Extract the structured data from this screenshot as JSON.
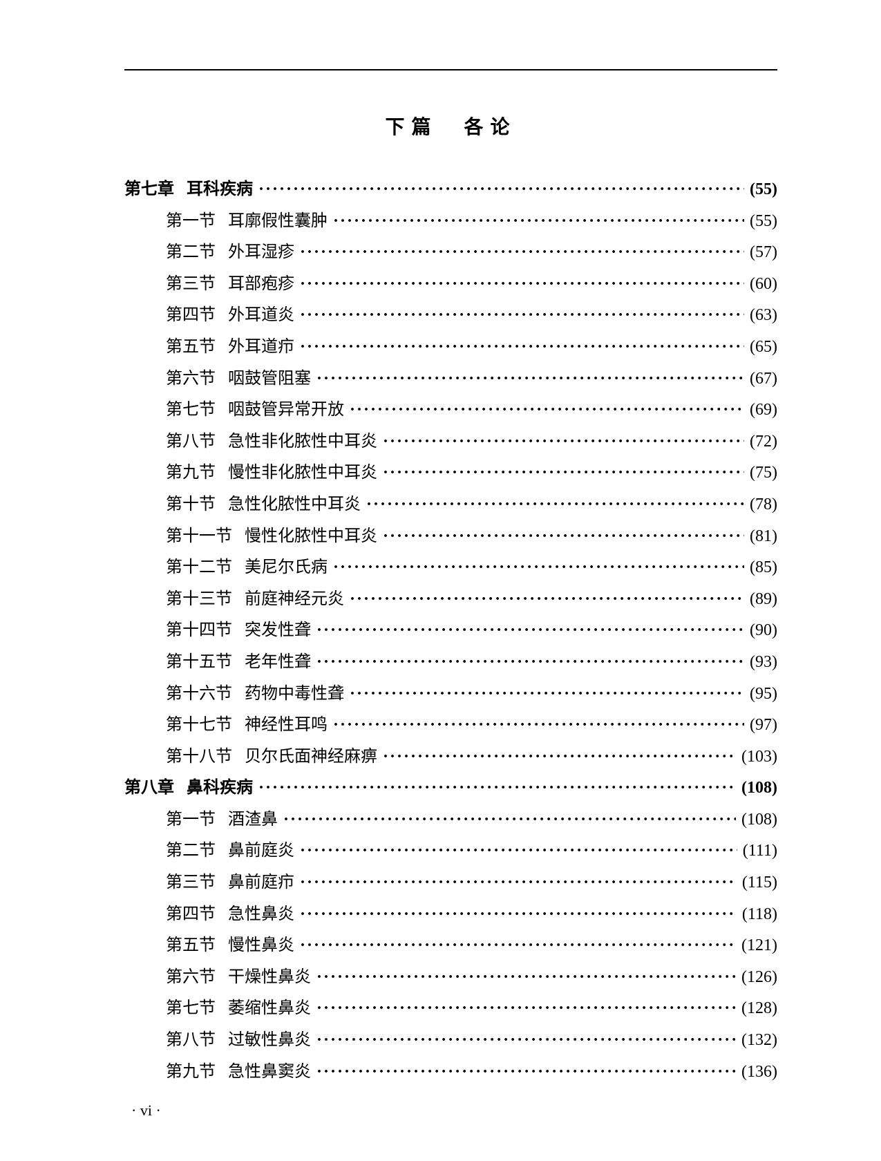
{
  "partTitle": "下篇　各论",
  "footer": "· vi ·",
  "entries": [
    {
      "type": "chapter",
      "label": "第七章",
      "title": "耳科疾病",
      "page": "(55)"
    },
    {
      "type": "section",
      "label": "第一节",
      "title": "耳廓假性囊肿",
      "page": "(55)"
    },
    {
      "type": "section",
      "label": "第二节",
      "title": "外耳湿疹",
      "page": "(57)"
    },
    {
      "type": "section",
      "label": "第三节",
      "title": "耳部疱疹",
      "page": "(60)"
    },
    {
      "type": "section",
      "label": "第四节",
      "title": "外耳道炎",
      "page": "(63)"
    },
    {
      "type": "section",
      "label": "第五节",
      "title": "外耳道疖",
      "page": "(65)"
    },
    {
      "type": "section",
      "label": "第六节",
      "title": "咽鼓管阻塞",
      "page": "(67)"
    },
    {
      "type": "section",
      "label": "第七节",
      "title": "咽鼓管异常开放",
      "page": "(69)"
    },
    {
      "type": "section",
      "label": "第八节",
      "title": "急性非化脓性中耳炎",
      "page": "(72)"
    },
    {
      "type": "section",
      "label": "第九节",
      "title": "慢性非化脓性中耳炎",
      "page": "(75)"
    },
    {
      "type": "section",
      "label": "第十节",
      "title": "急性化脓性中耳炎",
      "page": "(78)"
    },
    {
      "type": "section",
      "label": "第十一节",
      "title": "慢性化脓性中耳炎",
      "page": "(81)"
    },
    {
      "type": "section",
      "label": "第十二节",
      "title": "美尼尔氏病",
      "page": "(85)"
    },
    {
      "type": "section",
      "label": "第十三节",
      "title": "前庭神经元炎",
      "page": "(89)"
    },
    {
      "type": "section",
      "label": "第十四节",
      "title": "突发性聋",
      "page": "(90)"
    },
    {
      "type": "section",
      "label": "第十五节",
      "title": "老年性聋",
      "page": "(93)"
    },
    {
      "type": "section",
      "label": "第十六节",
      "title": "药物中毒性聋",
      "page": "(95)"
    },
    {
      "type": "section",
      "label": "第十七节",
      "title": "神经性耳鸣",
      "page": "(97)"
    },
    {
      "type": "section",
      "label": "第十八节",
      "title": "贝尔氏面神经麻痹",
      "page": "(103)"
    },
    {
      "type": "chapter",
      "label": "第八章",
      "title": "鼻科疾病",
      "page": "(108)"
    },
    {
      "type": "section",
      "label": "第一节",
      "title": "酒渣鼻",
      "page": "(108)"
    },
    {
      "type": "section",
      "label": "第二节",
      "title": "鼻前庭炎",
      "page": "(111)"
    },
    {
      "type": "section",
      "label": "第三节",
      "title": "鼻前庭疖",
      "page": "(115)"
    },
    {
      "type": "section",
      "label": "第四节",
      "title": "急性鼻炎",
      "page": "(118)"
    },
    {
      "type": "section",
      "label": "第五节",
      "title": "慢性鼻炎",
      "page": "(121)"
    },
    {
      "type": "section",
      "label": "第六节",
      "title": "干燥性鼻炎",
      "page": "(126)"
    },
    {
      "type": "section",
      "label": "第七节",
      "title": "萎缩性鼻炎",
      "page": "(128)"
    },
    {
      "type": "section",
      "label": "第八节",
      "title": "过敏性鼻炎",
      "page": "(132)"
    },
    {
      "type": "section",
      "label": "第九节",
      "title": "急性鼻窦炎",
      "page": "(136)"
    }
  ]
}
